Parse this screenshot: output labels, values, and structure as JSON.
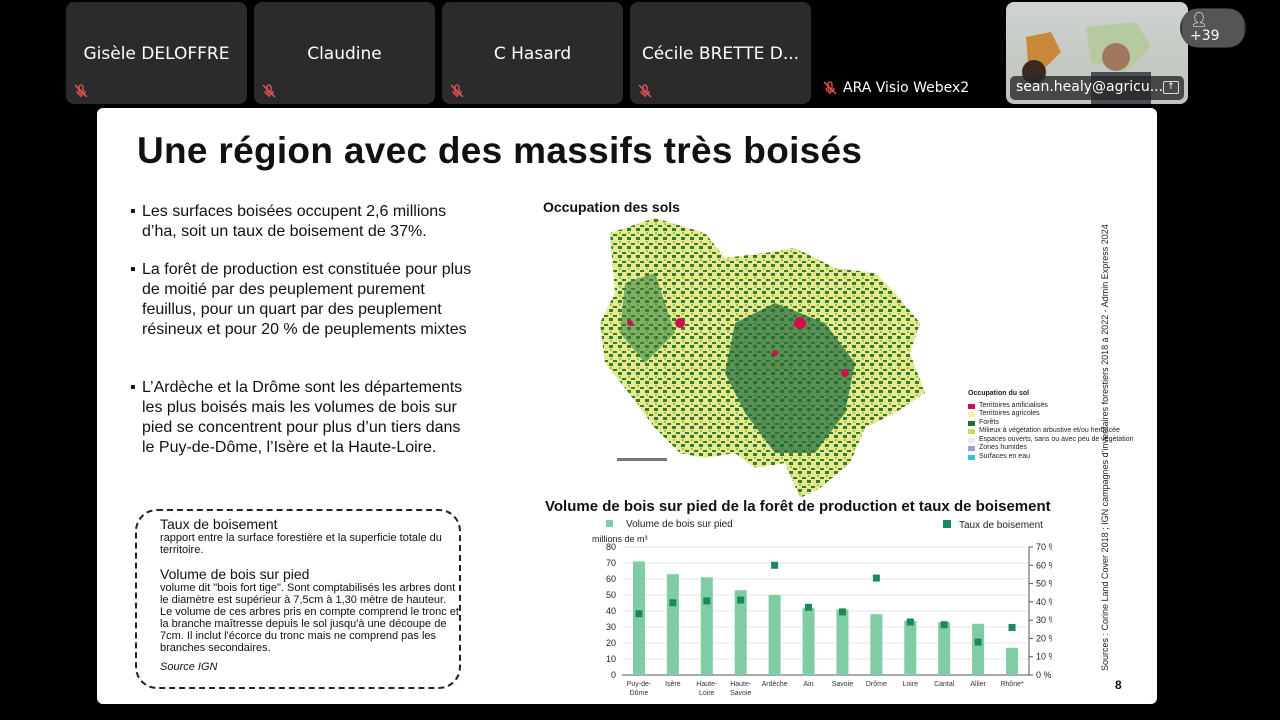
{
  "participants": [
    {
      "name": "Gisèle DELOFFRE",
      "muted": true
    },
    {
      "name": "Claudine",
      "muted": true
    },
    {
      "name": "C Hasard",
      "muted": true
    },
    {
      "name": "Cécile BRETTE D...",
      "muted": true
    }
  ],
  "audio_only": {
    "name": "ARA Visio Webex2",
    "muted": true
  },
  "active_video": {
    "name": "sean.healy@agricu..."
  },
  "more_participants": "+39",
  "slide": {
    "title": "Une région avec des massifs très boisés",
    "bullets": [
      "Les surfaces boisées occupent 2,6 millions d’ha, soit un taux de boisement de 37%.",
      "La forêt de production est constituée pour plus de moitié par des peuplement purement feuillus, pour un quart par des peuplement résineux et pour 20 % de peuplements mixtes",
      "L’Ardèche et la Drôme sont les départements les plus boisés mais les volumes de bois sur pied se concentrent pour plus d’un tiers dans le Puy-de-Dôme, l’Isère et la Haute-Loire."
    ],
    "definitions": {
      "term1": "Taux de boisement",
      "def1": "rapport entre la surface forestière et la superficie totale du territoire.",
      "term2": "Volume de bois sur pied",
      "def2": "volume dit \"bois fort tige\". Sont comptabilisés les arbres dont le diamètre est supérieur à 7,5cm à 1,30 mètre de hauteur. Le volume de ces arbres pris en compte comprend le tronc et la branche maîtresse depuis le sol jusqu'à une découpe de 7cm. Il inclut l'écorce du tronc mais ne comprend pas les branches secondaires.",
      "source": "Source IGN"
    },
    "map": {
      "title": "Occupation des sols",
      "legend_title": "Occupation du sol",
      "legend": [
        {
          "label": "Territoires artificialisés",
          "color": "#d0104c"
        },
        {
          "label": "Territoires agricoles",
          "color": "#f6f2a8"
        },
        {
          "label": "Forêts",
          "color": "#1f6b3a"
        },
        {
          "label": "Milieux à végétation arbustive et/ou herbacée",
          "color": "#c6dc5a"
        },
        {
          "label": "Espaces ouverts, sans ou avec peu de végétation",
          "color": "#ececec"
        },
        {
          "label": "Zones humides",
          "color": "#a79be0"
        },
        {
          "label": "Surfaces en eau",
          "color": "#2bc4d8"
        }
      ]
    },
    "sources": "Sources : Corine Land Cover 2018 ; IGN campagnes d’inventaires forestiers 2018 à 2022 - Admin Express 2024",
    "page_number": "8"
  },
  "chart_data": {
    "type": "bar",
    "title": "Volume de bois sur pied de la forêt de production et taux de boisement",
    "ylabel": "millions de m³",
    "categories": [
      "Puy-de-Dôme",
      "Isère",
      "Haute-Loire",
      "Haute-Savoie",
      "Ardèche",
      "Ain",
      "Savoie",
      "Drôme",
      "Loire",
      "Cantal",
      "Allier",
      "Rhône*"
    ],
    "category_labels": [
      [
        "Puy-de-",
        "Dôme"
      ],
      [
        "Isère"
      ],
      [
        "Haute-",
        "Loire"
      ],
      [
        "Haute-",
        "Savoie"
      ],
      [
        "Ardèche"
      ],
      [
        "Ain"
      ],
      [
        "Savoie"
      ],
      [
        "Drôme"
      ],
      [
        "Loire"
      ],
      [
        "Cantal"
      ],
      [
        "Allier"
      ],
      [
        "Rhône*"
      ]
    ],
    "series": [
      {
        "name": "Volume de bois sur pied",
        "type": "bar",
        "axis": "left",
        "color": "#7fcca5",
        "values": [
          71,
          63,
          61,
          53,
          50,
          42,
          41,
          38,
          34,
          33,
          32,
          17
        ]
      },
      {
        "name": "Taux de boisement",
        "type": "scatter",
        "axis": "right",
        "color": "#1a8a5a",
        "values": [
          33.5,
          39.5,
          40.5,
          41,
          60,
          37,
          34.5,
          53,
          29,
          27.5,
          18,
          26
        ]
      }
    ],
    "ylim": [
      0,
      80
    ],
    "yticks": [
      0,
      10,
      20,
      30,
      40,
      50,
      60,
      70,
      80
    ],
    "y2lim": [
      0,
      70
    ],
    "y2ticks": [
      "0 %",
      "10 %",
      "20 %",
      "30 %",
      "40 %",
      "50 %",
      "60 %",
      "70 %"
    ],
    "grid": true,
    "legend": "top"
  }
}
